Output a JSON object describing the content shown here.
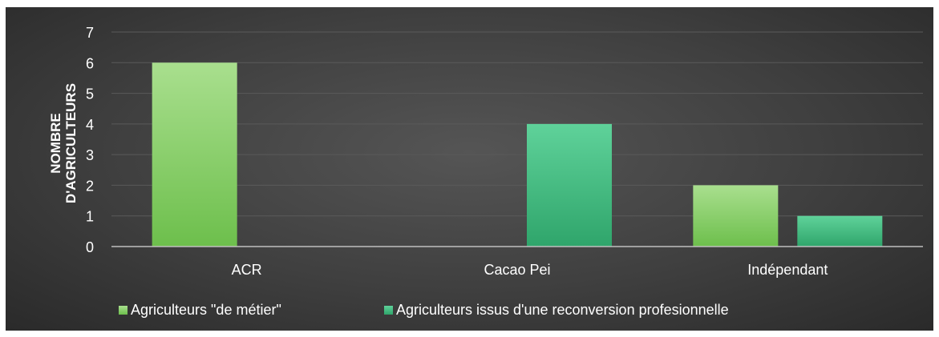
{
  "chart_data": {
    "type": "bar",
    "title": "",
    "xlabel": "",
    "ylabel": "NOMBRE D'AGRICULTEURS",
    "ylabel_lines": [
      "NOMBRE",
      "D'AGRICULTEURS"
    ],
    "ylim": [
      0,
      7
    ],
    "yticks": [
      0,
      1,
      2,
      3,
      4,
      5,
      6,
      7
    ],
    "grid": true,
    "legend_position": "bottom",
    "categories": [
      "ACR",
      "Cacao Pei",
      "Indépendant"
    ],
    "series": [
      {
        "name": "Agriculteurs \"de métier\"",
        "values": [
          6,
          0,
          2
        ],
        "color": "#8fd36a"
      },
      {
        "name": "Agriculteurs issus d'une reconversion profesionnelle",
        "values": [
          0,
          4,
          1
        ],
        "color": "#3dbd82"
      }
    ]
  },
  "colors": {
    "background": "#3f3f3f",
    "text": "#ffffff",
    "grid": "#5a5a5a",
    "axis": "#bfbfbf"
  }
}
